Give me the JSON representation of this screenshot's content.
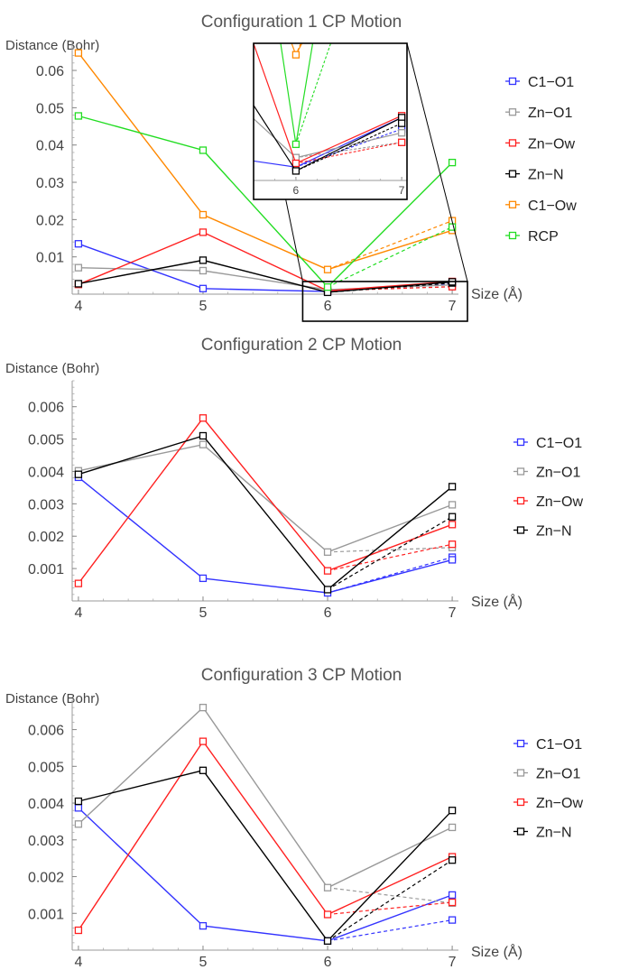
{
  "chart_data": [
    {
      "type": "line",
      "title": "Configuration 1 CP Motion",
      "xlabel": "Size (Å)",
      "ylabel": "Distance (Bohr)",
      "x": [
        4,
        5,
        6,
        7
      ],
      "x_ticks": [
        "4",
        "5",
        "6",
        "7"
      ],
      "xlim": [
        3.95,
        7.05
      ],
      "ylim": [
        0.0,
        0.068
      ],
      "y_ticks": [
        0.01,
        0.02,
        0.03,
        0.04,
        0.05,
        0.06
      ],
      "y_tick_labels": [
        "0.01",
        "0.02",
        "0.03",
        "0.04",
        "0.05",
        "0.06"
      ],
      "legend_position": "right",
      "series": [
        {
          "name": "C1−O1",
          "color": "#3333ff",
          "values": [
            0.0135,
            0.0015,
            0.0007,
            0.0033
          ],
          "dashed_end": 0.0027
        },
        {
          "name": "Zn−O1",
          "color": "#999999",
          "values": [
            0.0071,
            0.0063,
            0.0012,
            0.0025
          ],
          "dashed_end": 0.002
        },
        {
          "name": "Zn−Ow",
          "color": "#ff2020",
          "values": [
            0.0026,
            0.0166,
            0.0009,
            0.0034
          ],
          "dashed_end": 0.002
        },
        {
          "name": "Zn−N",
          "color": "#000000",
          "values": [
            0.0028,
            0.0091,
            0.0005,
            0.0033
          ],
          "dashed_end": 0.003
        },
        {
          "name": "C1−Ow",
          "color": "#ff8800",
          "values": [
            0.0647,
            0.0213,
            0.0066,
            0.0171
          ],
          "dashed_end": 0.0197
        },
        {
          "name": "RCP",
          "color": "#22dd22",
          "values": [
            0.0478,
            0.0386,
            0.0019,
            0.0353
          ],
          "dashed_end": 0.018
        }
      ],
      "inset": {
        "x_ticks": [
          "6",
          "7"
        ],
        "xlim": [
          5.6,
          7.05
        ],
        "ylim": [
          0.0,
          0.0072
        ]
      }
    },
    {
      "type": "line",
      "title": "Configuration 2 CP Motion",
      "xlabel": "Size (Å)",
      "ylabel": "Distance (Bohr)",
      "x": [
        4,
        5,
        6,
        7
      ],
      "x_ticks": [
        "4",
        "5",
        "6",
        "7"
      ],
      "xlim": [
        3.95,
        7.05
      ],
      "ylim": [
        0.0,
        0.0068
      ],
      "y_ticks": [
        0.001,
        0.002,
        0.003,
        0.004,
        0.005,
        0.006
      ],
      "y_tick_labels": [
        "0.001",
        "0.002",
        "0.003",
        "0.004",
        "0.005",
        "0.006"
      ],
      "legend_position": "right",
      "series": [
        {
          "name": "C1−O1",
          "color": "#3333ff",
          "values": [
            0.00382,
            0.0007,
            0.00025,
            0.00127
          ],
          "dashed_end": 0.00135
        },
        {
          "name": "Zn−O1",
          "color": "#999999",
          "values": [
            0.00402,
            0.00483,
            0.00151,
            0.00297
          ],
          "dashed_end": 0.00165
        },
        {
          "name": "Zn−Ow",
          "color": "#ff2020",
          "values": [
            0.00054,
            0.00565,
            0.00093,
            0.00236
          ],
          "dashed_end": 0.00175
        },
        {
          "name": "Zn−N",
          "color": "#000000",
          "values": [
            0.00391,
            0.0051,
            0.00035,
            0.00353
          ],
          "dashed_end": 0.0026
        }
      ]
    },
    {
      "type": "line",
      "title": "Configuration 3 CP Motion",
      "xlabel": "Size (Å)",
      "ylabel": "Distance (Bohr)",
      "x": [
        4,
        5,
        6,
        7
      ],
      "x_ticks": [
        "4",
        "5",
        "6",
        "7"
      ],
      "xlim": [
        3.95,
        7.05
      ],
      "ylim": [
        0.0,
        0.0068
      ],
      "y_ticks": [
        0.001,
        0.002,
        0.003,
        0.004,
        0.005,
        0.006
      ],
      "y_tick_labels": [
        "0.001",
        "0.002",
        "0.003",
        "0.004",
        "0.005",
        "0.006"
      ],
      "legend_position": "right",
      "series": [
        {
          "name": "C1−O1",
          "color": "#3333ff",
          "values": [
            0.00387,
            0.00066,
            0.00025,
            0.0015
          ],
          "dashed_end": 0.00082
        },
        {
          "name": "Zn−O1",
          "color": "#999999",
          "values": [
            0.00343,
            0.0066,
            0.0017,
            0.00334
          ],
          "dashed_end": 0.00128
        },
        {
          "name": "Zn−Ow",
          "color": "#ff2020",
          "values": [
            0.00054,
            0.00568,
            0.00097,
            0.00254
          ],
          "dashed_end": 0.0013
        },
        {
          "name": "Zn−N",
          "color": "#000000",
          "values": [
            0.00405,
            0.00489,
            0.00025,
            0.0038
          ],
          "dashed_end": 0.00245
        }
      ]
    }
  ]
}
